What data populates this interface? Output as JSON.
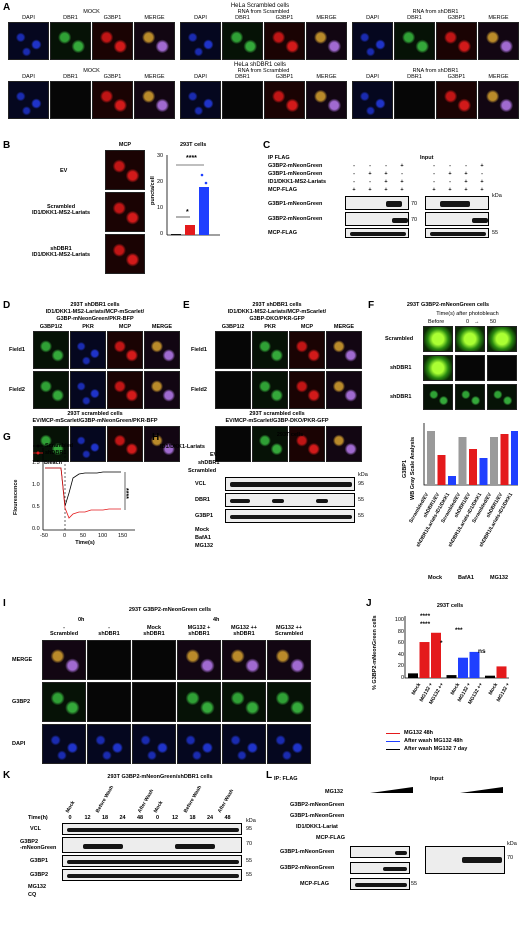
{
  "panels": {
    "A": {
      "letter": "A",
      "row1_title": "HeLa Scrambled cells",
      "row2_title": "HeLa shDBR1 cells",
      "groups": [
        "MOCK",
        "RNA from Scrambled",
        "RNA from shDBR1"
      ],
      "channels": [
        "DAPI",
        "DBR1",
        "G3BP1",
        "MERGE"
      ]
    },
    "B": {
      "letter": "B",
      "image_title": "MCP",
      "rows": [
        "EV",
        "Scrambled\nID1/DKK1-MS2-Lariats",
        "shDBR1\nID1/DKK1-MS2-Lariats"
      ],
      "chart_title": "293T cells",
      "ylabel": "puncta/cell",
      "sig_top": "****",
      "sig_low": "*",
      "yticks": [
        "0",
        "10",
        "20",
        "30"
      ]
    },
    "C": {
      "letter": "C",
      "ip_label": "IP FLAG",
      "input_label": "Input",
      "row_labels": [
        "G3BP2-mNeonGreen",
        "G3BP1-mNeonGreen",
        "ID1/DKK1-MS2-Lariats",
        "MCP-FLAG"
      ],
      "blot_labels": [
        "G3BP1-mNeonGreen",
        "G3BP2-mNeonGreen",
        "MCP-FLAG"
      ],
      "ip_signs": [
        [
          "-",
          "-",
          "-",
          "+"
        ],
        [
          "-",
          "+",
          "+",
          "-"
        ],
        [
          "-",
          "-",
          "+",
          "+"
        ],
        [
          "+",
          "+",
          "+",
          "+"
        ]
      ],
      "input_signs": [
        [
          "-",
          "-",
          "-",
          "+"
        ],
        [
          "-",
          "+",
          "+",
          "-"
        ],
        [
          "-",
          "-",
          "+",
          "+"
        ],
        [
          "+",
          "+",
          "+",
          "+"
        ]
      ],
      "kda": "kDa",
      "mw": [
        "70",
        "70",
        "55"
      ]
    },
    "D": {
      "letter": "D",
      "title1": "293T shDBR1 cells",
      "title2": "ID1/DKK1-MS2-Lariats/MCP-mScarlet/",
      "title3": "G3BP-mNeonGreen/PKR-BFP",
      "channels": [
        "G3BP1/2",
        "PKR",
        "MCP",
        "MERGE"
      ],
      "fields": [
        "Field1",
        "Field2"
      ],
      "bottom1": "293T scrambled cells",
      "bottom2": "EV/MCP-mScarlet/G3BP-mNeonGreen/PKR-BFP"
    },
    "E": {
      "letter": "E",
      "title1": "293T shDBR1 cells",
      "title2": "ID1/DKK1-MS2-Lariats/MCP-mScarlet/",
      "title3": "G3BP-DKO/PKR-GFP",
      "channels": [
        "G3BP1/2",
        "PKR",
        "MCP",
        "MERGE"
      ],
      "fields": [
        "Field1",
        "Field2"
      ],
      "bottom1": "293T scrambled cells",
      "bottom2": "EV/MCP-mScarlet/G3BP-DKO/PKR-GFP"
    },
    "F": {
      "letter": "F",
      "title": "293T G3BP2-mNeonGreen cells",
      "subtitle": "Time(s) after photobleach",
      "before": "Before",
      "t0": "0",
      "t50": "50",
      "rows": [
        "Scrambled",
        "shDBR1",
        "shDBR1"
      ]
    },
    "F2": {
      "ylabel1": "G3BP1",
      "ylabel2": "WB Gray Scale Analysis",
      "categories": [
        "Scrambled/EV",
        "shDBR1/EV",
        "shDBR1/Lariats-ID1/DKK1",
        "Scrambled/EV",
        "shDBR1/EV",
        "shDBR1/Lariats-ID1/DKK1",
        "Scrambled/EV",
        "shDBR1/EV",
        "shDBR1/Lariats-ID1/DKK1"
      ],
      "values": [
        0.9,
        0.5,
        0.15,
        0.8,
        0.6,
        0.45,
        0.8,
        0.85,
        0.9
      ],
      "groups": [
        "Mock",
        "BafA1",
        "MG132"
      ]
    },
    "G": {
      "letter": "G",
      "legend": [
        "Scrambled",
        "shDBR1"
      ],
      "bleach": "Bleach",
      "xlabel": "Time(s)",
      "ylabel": "Flourescence",
      "yticks": [
        "0.0",
        "0.5",
        "1.0",
        "1.5"
      ],
      "xticks": [
        "-50",
        "0",
        "50",
        "100",
        "150"
      ],
      "sig": "****"
    },
    "H": {
      "letter": "H",
      "title": "293T cells",
      "row_labels": [
        "ID1/DKK1-Lariats",
        "EV",
        "shDBR1",
        "Scrambled"
      ],
      "blot_labels": [
        "VCL",
        "DBR1",
        "G3BP1"
      ],
      "treat_labels": [
        "Mock",
        "BafA1",
        "MG132"
      ],
      "mw": [
        "95",
        "55",
        "55"
      ],
      "kda": "kDa"
    },
    "I": {
      "letter": "I",
      "title": "293T G3BP2-mNeonGreen cells",
      "time0": "0h",
      "time4": "4h",
      "cols": [
        "-\nScrambled",
        "-\nshDBR1",
        "Mock\nshDBR1",
        "MG132 +\nshDBR1",
        "MG132 ++\nshDBR1",
        "MG132 ++\nScrambled"
      ],
      "rows": [
        "MERGE",
        "G3BP2",
        "DAPI"
      ]
    },
    "J": {
      "letter": "J",
      "title": "293T cells",
      "ylabel": "% G3BP2-mNeonGreen cells",
      "yticks": [
        "0",
        "20",
        "40",
        "60",
        "80",
        "100"
      ],
      "values": [
        8,
        62,
        78,
        5,
        35,
        45,
        4,
        20
      ],
      "sig": [
        "****",
        "****",
        "***",
        "*",
        "ns"
      ],
      "xcats": [
        "Mock",
        "MG132 +",
        "MG132 ++",
        "Mock",
        "MG132 +",
        "MG132 ++",
        "Mock",
        "MG132 +"
      ],
      "legend": [
        "MG132 48h",
        "After wash MG132 48h",
        "After wash MG132 7 day"
      ]
    },
    "K": {
      "letter": "K",
      "title": "293T G3BP2-mNeonGreen/shDBR1 cells",
      "col_groups": [
        "Mock",
        "Before Wash",
        "After Wash",
        "Mock",
        "Before Wash",
        "After Wash"
      ],
      "time_label": "Time(h)",
      "times": [
        "0",
        "12",
        "18",
        "24",
        "48",
        "0",
        "12",
        "18",
        "24",
        "48"
      ],
      "blot_labels": [
        "VCL",
        "G3BP2\n-mNeonGreen",
        "G3BP1",
        "G3BP2"
      ],
      "mg132": "MG132",
      "cq": "CQ",
      "mw": [
        "95",
        "70",
        "55",
        "55"
      ],
      "kda": "kDa"
    },
    "L": {
      "letter": "L",
      "ip_label": "IP: FLAG",
      "input_label": "Input",
      "row_labels": [
        "MG132",
        "G3BP2-mNeonGreen",
        "G3BP1-mNeonGreen",
        "ID1/DKK1-Lariat",
        "MCP-FLAG"
      ],
      "blot_labels": [
        "G3BP1-mNeonGreen",
        "G3BP2-mNeonGreen",
        "MCP-FLAG"
      ],
      "mw": [
        "70",
        "55"
      ],
      "kda": "kDa"
    }
  },
  "colors": {
    "black": "#000000",
    "red": "#e41a1c",
    "blue": "#1f3fff",
    "gray": "#9a9a9a"
  }
}
